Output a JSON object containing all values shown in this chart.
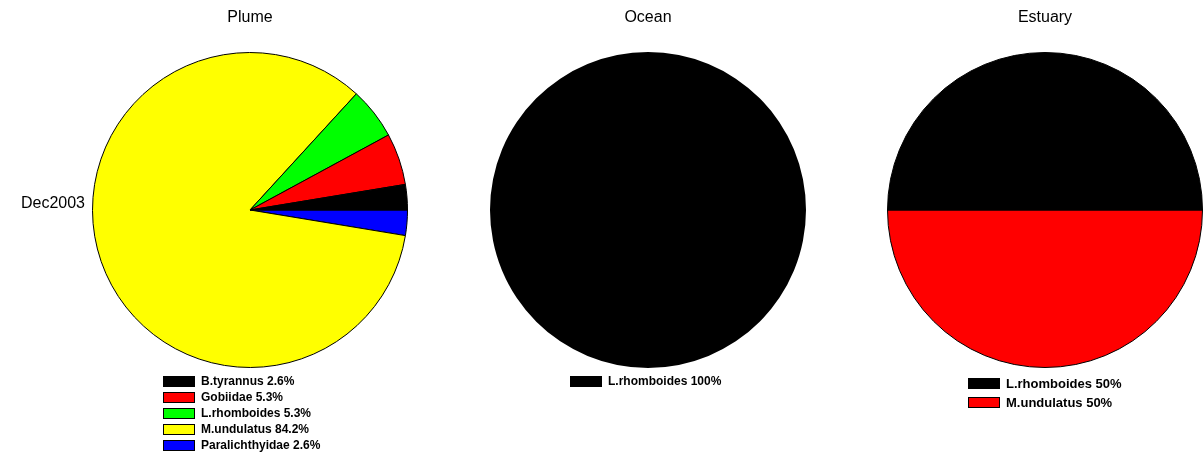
{
  "chart_data": [
    {
      "type": "pie",
      "title": "Plume",
      "categories": [
        "Paralichthyidae",
        "M.undulatus",
        "L.rhomboides",
        "Gobiidae",
        "B.tyrannus"
      ],
      "values": [
        2.6,
        84.2,
        5.3,
        5.3,
        2.6
      ],
      "value_labels": [
        "2.6%",
        "84.2%",
        "5.3%",
        "5.3%",
        "2.6%"
      ],
      "colors": [
        "#0000ff",
        "#ffff00",
        "#00ff00",
        "#ff0000",
        "#000000"
      ],
      "legend": "bottom",
      "annotations": [
        "Dec2003"
      ]
    },
    {
      "type": "pie",
      "title": "Ocean",
      "categories": [
        "L.rhomboides"
      ],
      "values": [
        100
      ],
      "value_labels": [
        "100%"
      ],
      "colors": [
        "#000000"
      ],
      "legend": "bottom"
    },
    {
      "type": "pie",
      "title": "Estuary",
      "categories": [
        "M.undulatus",
        "L.rhomboides"
      ],
      "values": [
        50,
        50
      ],
      "value_labels": [
        "50%",
        "50%"
      ],
      "colors": [
        "#ff0000",
        "#000000"
      ],
      "legend": "bottom"
    }
  ]
}
